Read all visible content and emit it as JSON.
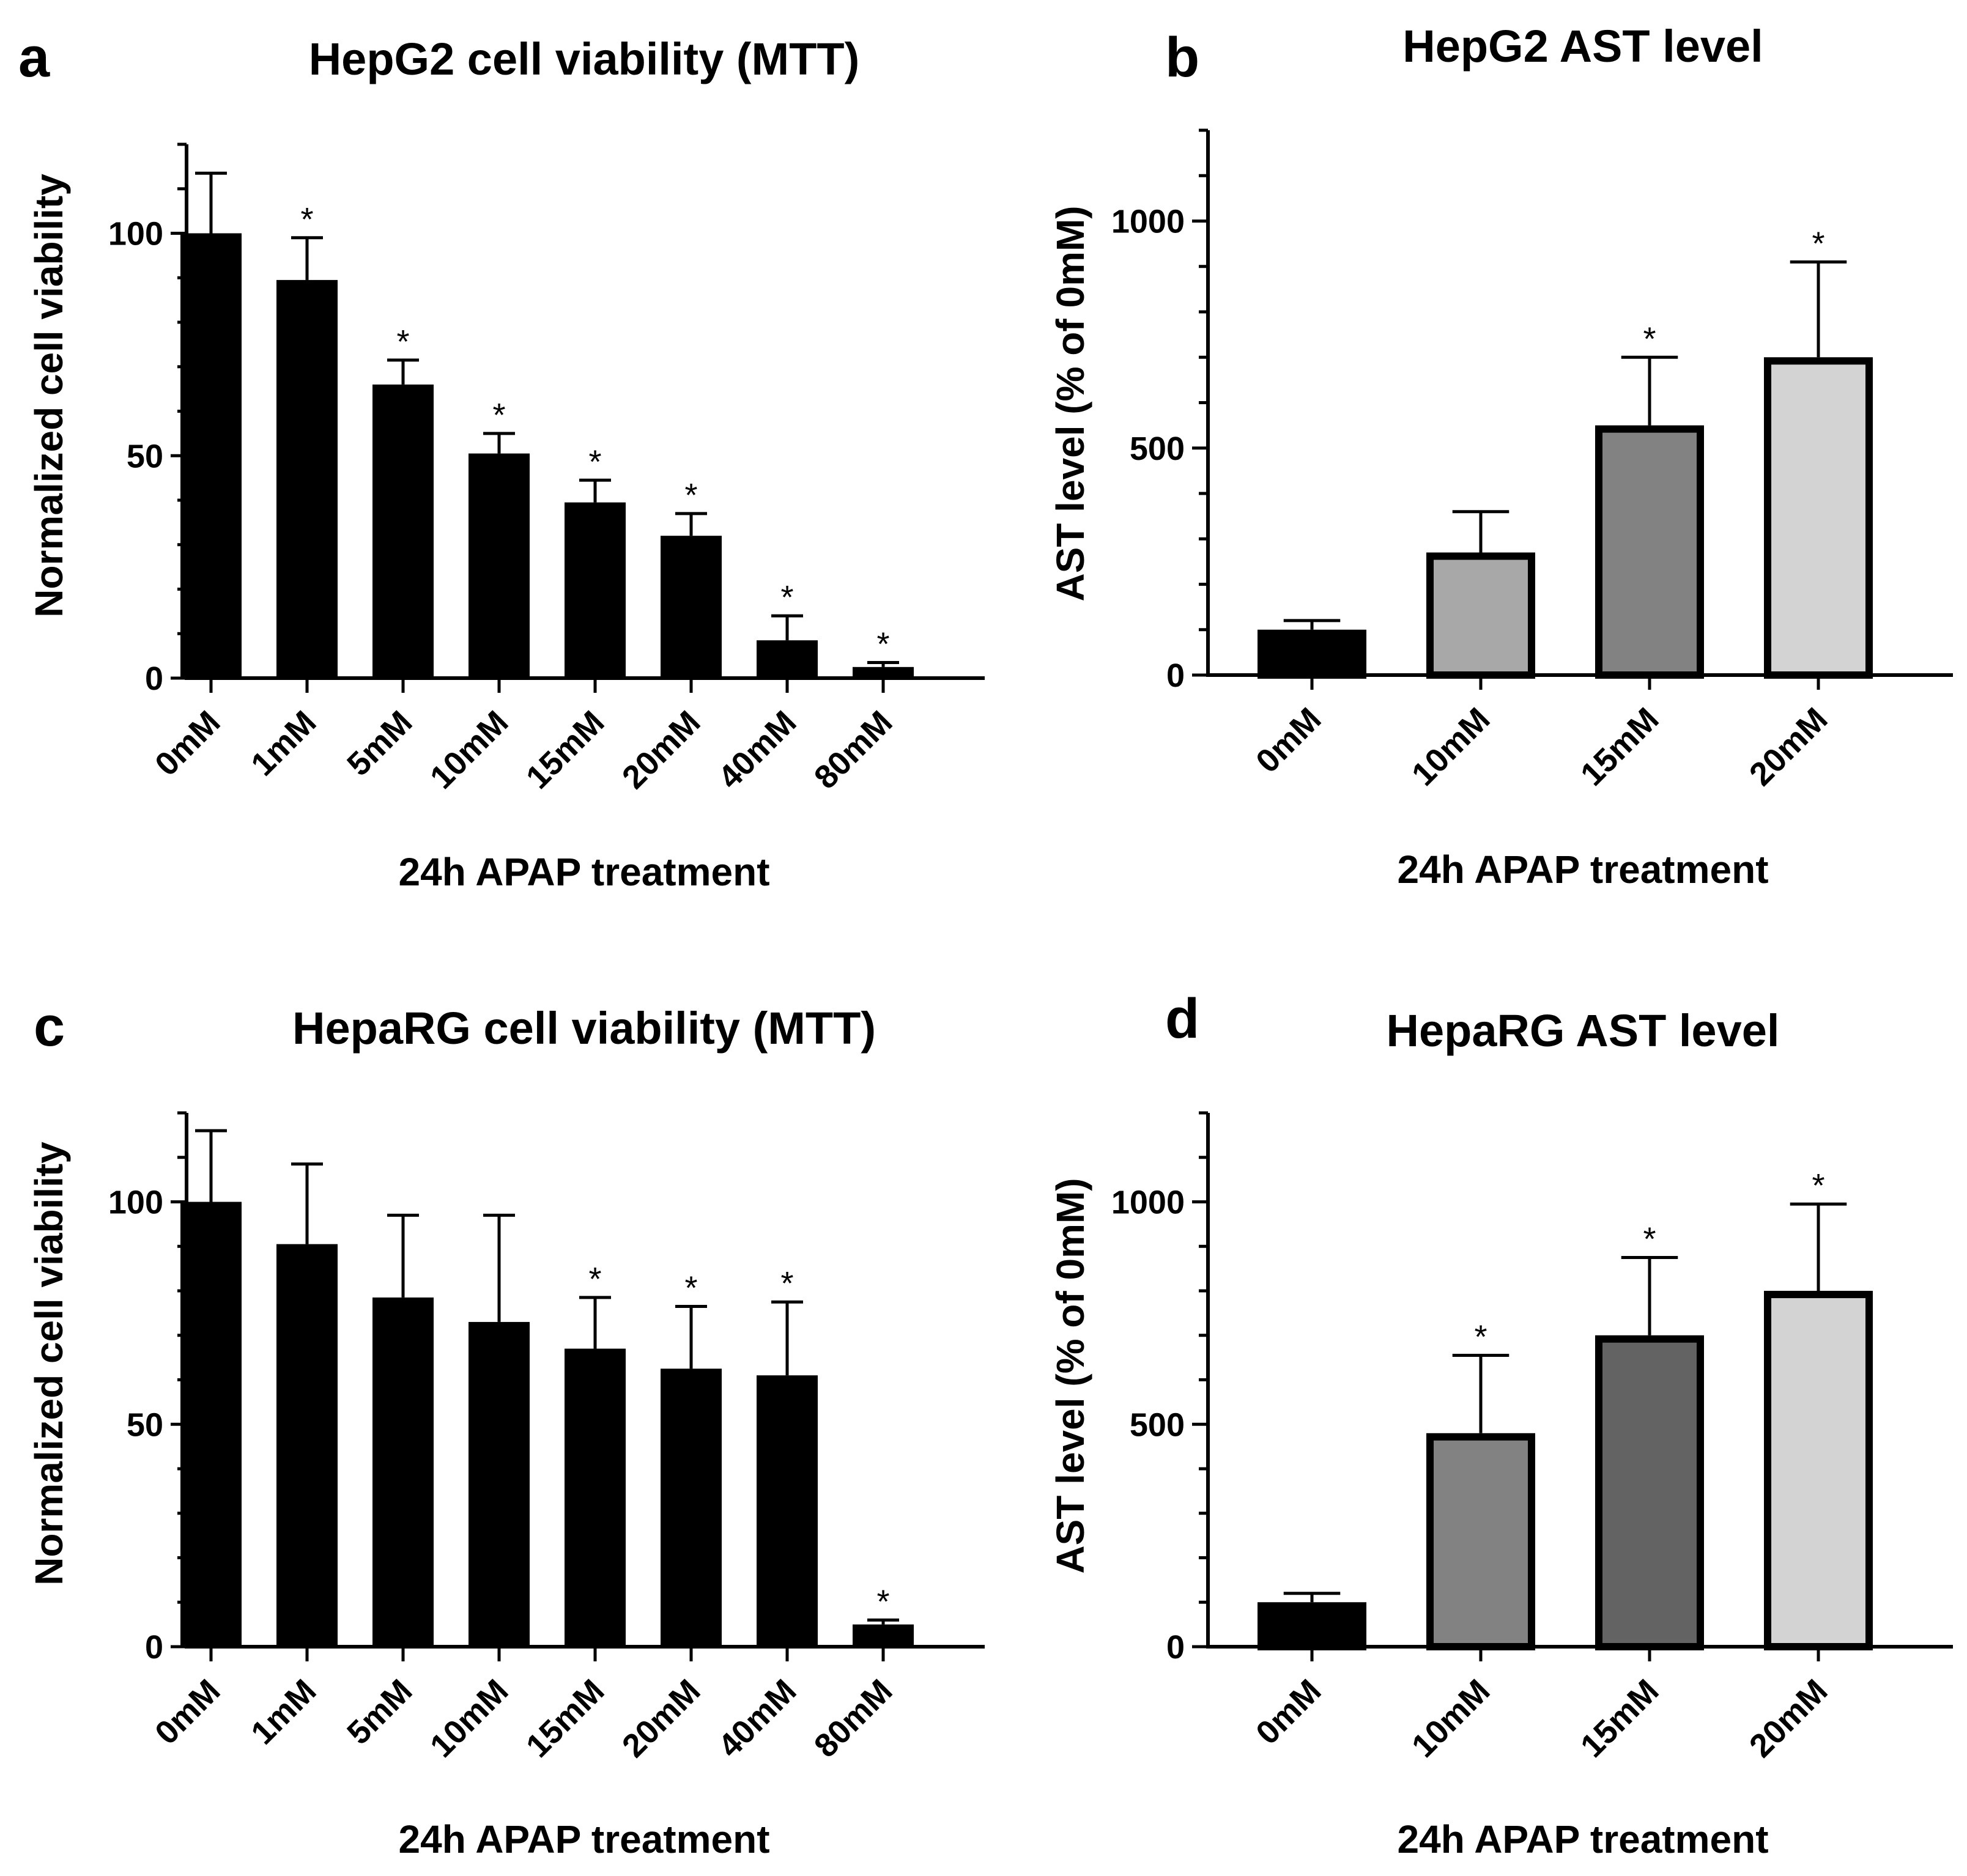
{
  "colors": {
    "axis": "#000000",
    "bar_black": "#000000",
    "bar_light_gray": "#d3d3d3",
    "bar_medium_gray": "#a8a8a8",
    "bar_gray": "#828282",
    "bar_dark_gray": "#636363"
  },
  "chart_data": [
    {
      "panel": "a",
      "type": "bar",
      "title": "HepG2 cell viability (MTT)",
      "xlabel": "24h APAP treatment",
      "ylabel": "Normalized cell viability",
      "ylim": [
        0,
        120
      ],
      "yticks": [
        0,
        50,
        100
      ],
      "y_minor_step": 10,
      "categories": [
        "0mM",
        "1mM",
        "5mM",
        "10mM",
        "15mM",
        "20mM",
        "40mM",
        "80mM"
      ],
      "values": [
        100,
        89.5,
        66,
        50.5,
        39.5,
        32,
        8.5,
        2.5
      ],
      "errors": [
        13.5,
        9.5,
        5.5,
        4.5,
        5,
        5,
        5.5,
        1
      ],
      "significant": [
        false,
        true,
        true,
        true,
        true,
        true,
        true,
        true
      ],
      "sig_label": "*",
      "bar_colors": [
        "#000000",
        "#000000",
        "#000000",
        "#000000",
        "#000000",
        "#000000",
        "#000000",
        "#000000"
      ],
      "grid": false
    },
    {
      "panel": "b",
      "type": "bar",
      "title": "HepG2 AST level",
      "xlabel": "24h APAP treatment",
      "ylabel": "AST level (% of 0mM)",
      "ylim": [
        0,
        1200
      ],
      "yticks": [
        0,
        500,
        1000
      ],
      "y_minor_step": 100,
      "categories": [
        "0mM",
        "10mM",
        "15mM",
        "20mM"
      ],
      "values": [
        100,
        270,
        550,
        700
      ],
      "errors": [
        20,
        90,
        150,
        210
      ],
      "significant": [
        false,
        false,
        true,
        true
      ],
      "sig_label": "*",
      "bar_colors": [
        "#000000",
        "#a8a8a8",
        "#828282",
        "#d3d3d3"
      ],
      "grid": false
    },
    {
      "panel": "c",
      "type": "bar",
      "title": "HepaRG cell viability (MTT)",
      "xlabel": "24h APAP treatment",
      "ylabel": "Normalized cell viability",
      "ylim": [
        0,
        120
      ],
      "yticks": [
        0,
        50,
        100
      ],
      "y_minor_step": 10,
      "categories": [
        "0mM",
        "1mM",
        "5mM",
        "10mM",
        "15mM",
        "20mM",
        "40mM",
        "80mM"
      ],
      "values": [
        100,
        90.5,
        78.5,
        73,
        67,
        62.5,
        61,
        5
      ],
      "errors": [
        16,
        18,
        18.5,
        24,
        11.5,
        14,
        16.5,
        1
      ],
      "significant": [
        false,
        false,
        false,
        false,
        true,
        true,
        true,
        true
      ],
      "sig_label": "*",
      "bar_colors": [
        "#000000",
        "#000000",
        "#000000",
        "#000000",
        "#000000",
        "#000000",
        "#000000",
        "#000000"
      ],
      "grid": false
    },
    {
      "panel": "d",
      "type": "bar",
      "title": "HepaRG AST level",
      "xlabel": "24h APAP treatment",
      "ylabel": "AST level (% of 0mM)",
      "ylim": [
        0,
        1200
      ],
      "yticks": [
        0,
        500,
        1000
      ],
      "y_minor_step": 100,
      "categories": [
        "0mM",
        "10mM",
        "15mM",
        "20mM"
      ],
      "values": [
        100,
        480,
        700,
        800
      ],
      "errors": [
        20,
        175,
        175,
        195
      ],
      "significant": [
        false,
        true,
        true,
        true
      ],
      "sig_label": "*",
      "bar_colors": [
        "#000000",
        "#828282",
        "#636363",
        "#d3d3d3"
      ],
      "grid": false
    }
  ]
}
